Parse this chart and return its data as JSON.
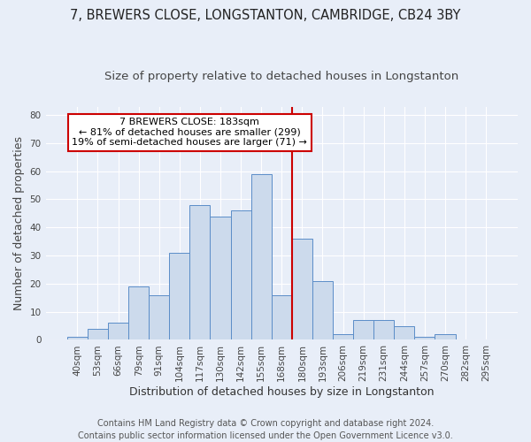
{
  "title1": "7, BREWERS CLOSE, LONGSTANTON, CAMBRIDGE, CB24 3BY",
  "title2": "Size of property relative to detached houses in Longstanton",
  "xlabel": "Distribution of detached houses by size in Longstanton",
  "ylabel": "Number of detached properties",
  "categories": [
    "40sqm",
    "53sqm",
    "66sqm",
    "79sqm",
    "91sqm",
    "104sqm",
    "117sqm",
    "130sqm",
    "142sqm",
    "155sqm",
    "168sqm",
    "180sqm",
    "193sqm",
    "206sqm",
    "219sqm",
    "231sqm",
    "244sqm",
    "257sqm",
    "270sqm",
    "282sqm",
    "295sqm"
  ],
  "values": [
    1,
    4,
    6,
    19,
    16,
    31,
    48,
    44,
    46,
    59,
    16,
    36,
    21,
    2,
    7,
    7,
    5,
    1,
    2,
    0,
    0
  ],
  "bar_color": "#ccdaec",
  "bar_edgecolor": "#5b8dc8",
  "marker_index": 11,
  "marker_label_line1": "7 BREWERS CLOSE: 183sqm",
  "marker_label_line2": "← 81% of detached houses are smaller (299)",
  "marker_label_line3": "19% of semi-detached houses are larger (71) →",
  "annotation_box_edgecolor": "#cc0000",
  "annotation_box_facecolor": "#ffffff",
  "marker_line_color": "#cc0000",
  "footer_line1": "Contains HM Land Registry data © Crown copyright and database right 2024.",
  "footer_line2": "Contains public sector information licensed under the Open Government Licence v3.0.",
  "ylim": [
    0,
    83
  ],
  "yticks": [
    0,
    10,
    20,
    30,
    40,
    50,
    60,
    70,
    80
  ],
  "background_color": "#e8eef8",
  "plot_background": "#e8eef8",
  "title1_fontsize": 10.5,
  "title2_fontsize": 9.5,
  "xlabel_fontsize": 9,
  "ylabel_fontsize": 9,
  "tick_fontsize": 7.5,
  "footer_fontsize": 7,
  "ann_fontsize": 8
}
